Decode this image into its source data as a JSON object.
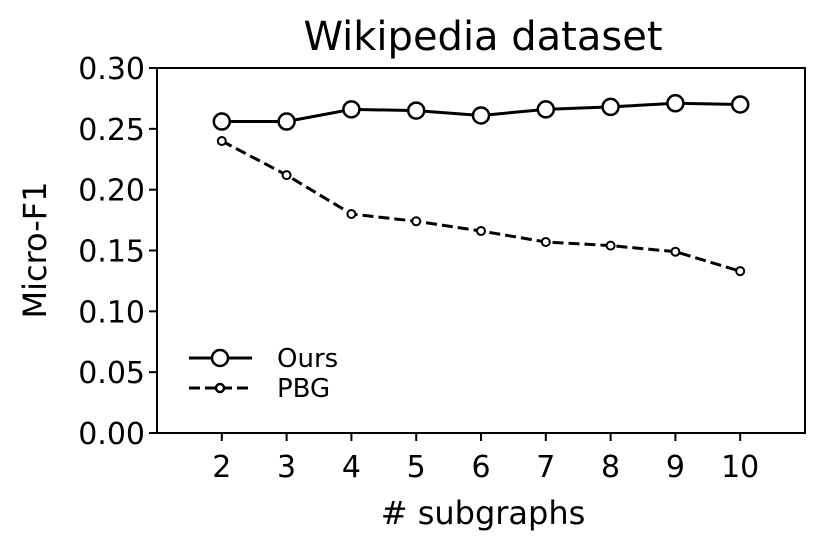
{
  "chart_data": {
    "type": "line",
    "title": "Wikipedia dataset",
    "xlabel": "# subgraphs",
    "ylabel": "Micro-F1",
    "x": [
      2,
      3,
      4,
      5,
      6,
      7,
      8,
      9,
      10
    ],
    "xlim": [
      1,
      11
    ],
    "ylim": [
      0.0,
      0.3
    ],
    "xticks": [
      "2",
      "3",
      "4",
      "5",
      "6",
      "7",
      "8",
      "9",
      "10"
    ],
    "yticks": [
      "0.00",
      "0.05",
      "0.10",
      "0.15",
      "0.20",
      "0.25",
      "0.30"
    ],
    "grid": false,
    "legend_position": "lower-left",
    "series": [
      {
        "name": "Ours",
        "values": [
          0.256,
          0.256,
          0.266,
          0.265,
          0.261,
          0.266,
          0.268,
          0.271,
          0.27
        ],
        "line_style": "solid",
        "marker": "open-circle-large",
        "color": "#000000"
      },
      {
        "name": "PBG",
        "values": [
          0.24,
          0.212,
          0.18,
          0.174,
          0.166,
          0.157,
          0.154,
          0.149,
          0.133
        ],
        "line_style": "dashed",
        "marker": "open-circle-small",
        "color": "#000000"
      }
    ]
  }
}
